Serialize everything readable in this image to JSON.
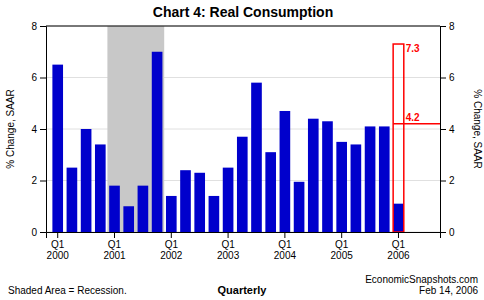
{
  "chart_data": {
    "type": "bar",
    "title": "Chart 4: Real Consumption",
    "ylabel": "% Change, SAAR",
    "y2label": "% Change, SAAR",
    "categories": [
      "Q1\n2000",
      null,
      null,
      null,
      "Q1\n2001",
      null,
      null,
      null,
      "Q1\n2002",
      null,
      null,
      null,
      "Q1\n2003",
      null,
      null,
      null,
      "Q1\n2004",
      null,
      null,
      null,
      "Q1\n2005",
      null,
      null,
      null,
      "Q1\n2006"
    ],
    "values": [
      6.5,
      2.5,
      4.0,
      3.4,
      1.8,
      1.0,
      1.8,
      7.0,
      1.4,
      2.4,
      2.3,
      1.4,
      2.5,
      3.7,
      5.8,
      3.1,
      4.7,
      1.95,
      4.4,
      4.3,
      3.5,
      3.4,
      4.1,
      4.1,
      1.1
    ],
    "color": "#0000CC",
    "ylim": [
      0,
      8
    ],
    "yticks": [
      0,
      2,
      4,
      6,
      8
    ],
    "y2lim": [
      0,
      8
    ],
    "y2ticks": [
      0,
      2,
      4,
      6,
      8
    ],
    "grid": true,
    "shaded": {
      "start": 4,
      "end": 8,
      "color": "#C8C8C8"
    },
    "estimate": {
      "index": 24,
      "value": 7.3,
      "current": 4.2,
      "color": "#FF0000"
    },
    "notes": [
      "Shaded Area = Recession.",
      "Quarterly",
      "EconomicSnapshots.com\nFeb 14, 2006"
    ]
  }
}
